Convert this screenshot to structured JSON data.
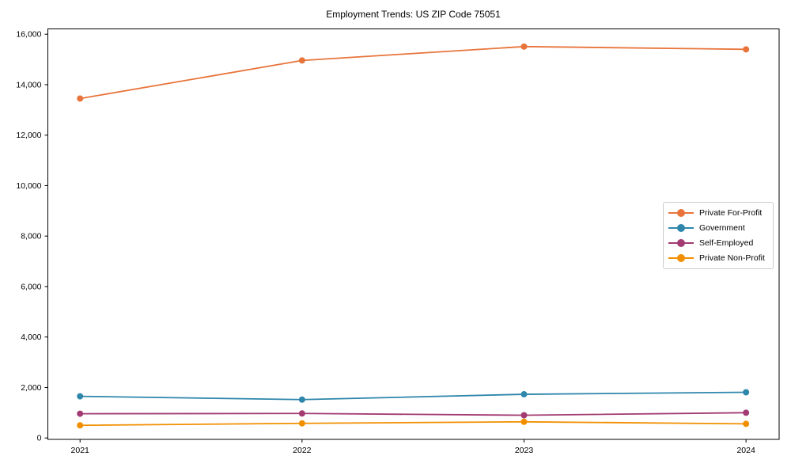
{
  "chart_data": {
    "type": "line",
    "title": "Employment Trends: US ZIP Code 75051",
    "xlabel": "",
    "ylabel": "",
    "grid": false,
    "legend_position": "center-right",
    "x": [
      2021,
      2022,
      2023,
      2024
    ],
    "x_tick_labels": [
      "2021",
      "2022",
      "2023",
      "2024"
    ],
    "ylim": [
      0,
      16000
    ],
    "y_ticks": [
      0,
      2000,
      4000,
      6000,
      8000,
      10000,
      12000,
      14000,
      16000
    ],
    "y_tick_labels": [
      "0",
      "2,000",
      "4,000",
      "6,000",
      "8,000",
      "10,000",
      "12,000",
      "14,000",
      "16,000"
    ],
    "series": [
      {
        "name": "Private For-Profit",
        "color": "#E8743B",
        "values": [
          13450,
          14960,
          15510,
          15400
        ]
      },
      {
        "name": "Government",
        "color": "#2E86AB",
        "values": [
          1650,
          1520,
          1730,
          1810
        ]
      },
      {
        "name": "Self-Employed",
        "color": "#A23B72",
        "values": [
          960,
          970,
          900,
          1000
        ]
      },
      {
        "name": "Private Non-Profit",
        "color": "#F18F01",
        "values": [
          500,
          580,
          640,
          560
        ]
      }
    ]
  }
}
